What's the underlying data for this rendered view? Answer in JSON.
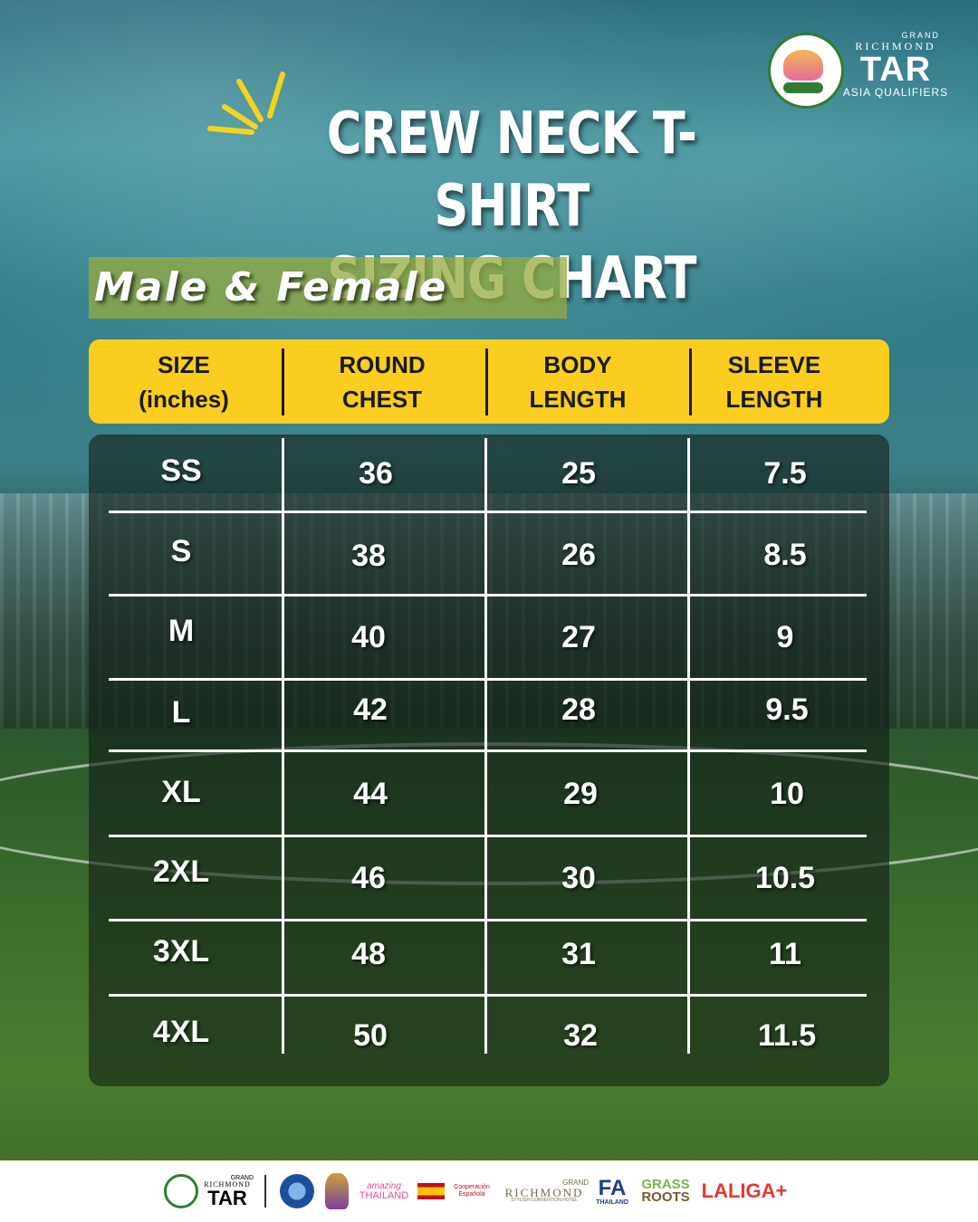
{
  "brand": {
    "grand": "GRAND",
    "richmond": "RICHMOND",
    "tar": "TAR",
    "sub": "ASIA QUALIFIERS"
  },
  "title": {
    "line1": "CREW NECK T-SHIRT",
    "line2": "SIZING CHART"
  },
  "subtitle": "Male & Female",
  "table": {
    "headers": [
      {
        "line1": "SIZE",
        "line2": "(inches)"
      },
      {
        "line1": "ROUND",
        "line2": "CHEST"
      },
      {
        "line1": "BODY",
        "line2": "LENGTH"
      },
      {
        "line1": "SLEEVE",
        "line2": "LENGTH"
      }
    ],
    "rows": [
      {
        "size": "SS",
        "chest": "36",
        "body": "25",
        "sleeve": "7.5"
      },
      {
        "size": "S",
        "chest": "38",
        "body": "26",
        "sleeve": "8.5"
      },
      {
        "size": "M",
        "chest": "40",
        "body": "27",
        "sleeve": "9"
      },
      {
        "size": "L",
        "chest": "42",
        "body": "28",
        "sleeve": "9.5"
      },
      {
        "size": "XL",
        "chest": "44",
        "body": "29",
        "sleeve": "10"
      },
      {
        "size": "2XL",
        "chest": "46",
        "body": "30",
        "sleeve": "10.5"
      },
      {
        "size": "3XL",
        "chest": "48",
        "body": "31",
        "sleeve": "11"
      },
      {
        "size": "4XL",
        "chest": "50",
        "body": "32",
        "sleeve": "11.5"
      }
    ]
  },
  "footer": {
    "tar_grand": "GRAND",
    "tar_richmond": "RICHMOND",
    "tar": "TAR",
    "amazing": "amazing",
    "thailand": "THAILAND",
    "cooperacion": "Cooperación Española",
    "grand_richmond": "GRAND",
    "richmond": "RICHMOND",
    "richmond_sub": "STYLISH CONVENTION HOTEL",
    "fa": "FA",
    "fa_thailand": "THAILAND",
    "grass": "GRASS",
    "roots": "ROOTS",
    "laliga": "LALIGA+"
  },
  "colors": {
    "header_yellow": "#fbcd1f",
    "laliga_red": "#e8362f",
    "grass_green": "#7ab648"
  },
  "icons": [
    "tournament-logo-icon",
    "sunburst-icon",
    "seal-icon",
    "crest-icon",
    "flag-icon"
  ]
}
